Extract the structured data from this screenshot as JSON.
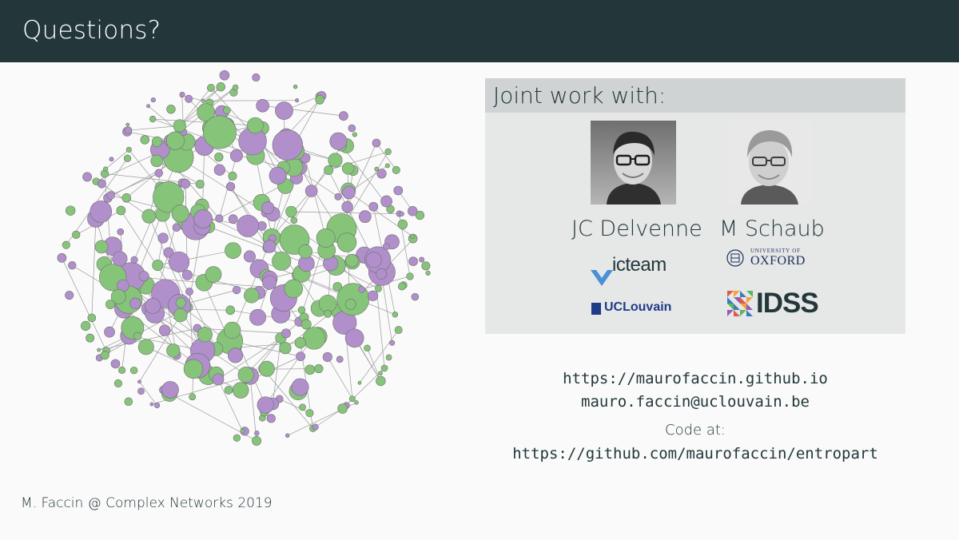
{
  "slide": {
    "title": "Questions?"
  },
  "collaborators": {
    "heading": "Joint work with:",
    "people": [
      {
        "name": "JC Delvenne",
        "photo": "portrait-photo"
      },
      {
        "name": "M Schaub",
        "photo": "portrait-photo"
      }
    ],
    "logos": {
      "icteam": "icteam",
      "uclouvain": "UCLouvain",
      "oxford_small": "UNIVERSITY OF",
      "oxford_big": "OXFORD",
      "idss": "IDSS"
    }
  },
  "contact": {
    "website": "https://maurofaccin.github.io",
    "email": "mauro.faccin@uclouvain.be",
    "code_label": "Code at:",
    "code_url": "https://github.com/maurofaccin/entropart"
  },
  "footer": {
    "text": "M. Faccin @ Complex Networks 2019"
  },
  "colors": {
    "header_bg": "#23373b",
    "block_bg": "#e6e7e7",
    "block_title_bg": "#d0d3d3",
    "node_green": "#86c47a",
    "node_purple": "#b08fcb",
    "edge": "#9a9a9a"
  }
}
